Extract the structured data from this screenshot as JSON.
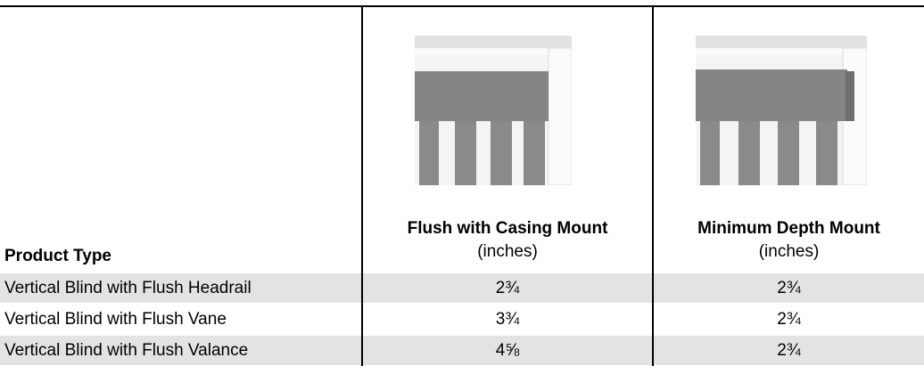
{
  "table": {
    "header": [
      "Product Type",
      {
        "title": "Flush with Casing Mount",
        "unit": "(inches)"
      },
      {
        "title": "Minimum Depth Mount",
        "unit": "(inches)"
      }
    ],
    "rows": [
      [
        "Vertical Blind with Flush Headrail",
        "2¾",
        "2¾"
      ],
      [
        "Vertical Blind with Flush Vane",
        "3¾",
        "2¾"
      ],
      [
        "Vertical Blind with Flush Valance",
        "4⅝",
        "2¾"
      ]
    ]
  }
}
